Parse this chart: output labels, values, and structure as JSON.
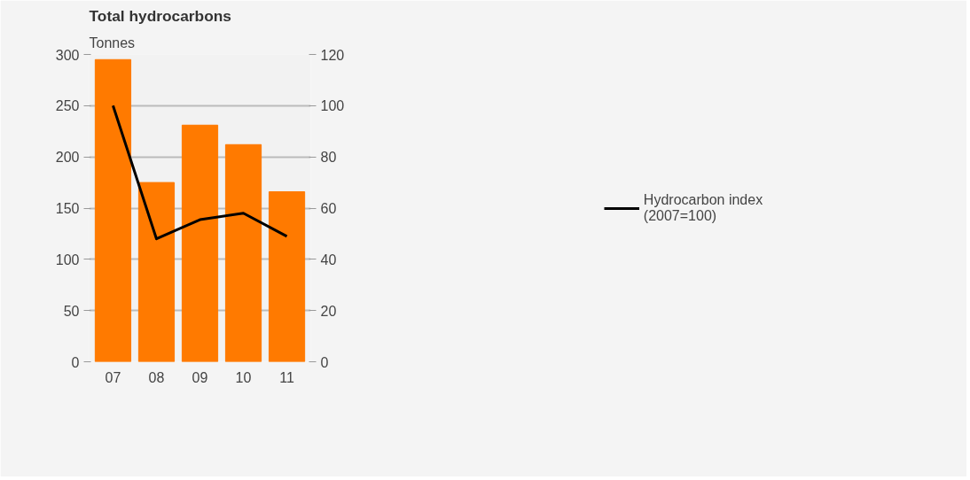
{
  "chart_data": {
    "type": "bar",
    "title": "Total hydrocarbons",
    "subtitle": "Tonnes",
    "categories": [
      "07",
      "08",
      "09",
      "10",
      "11"
    ],
    "series": [
      {
        "color": "#ff7a00",
        "values": [
          295,
          175,
          231,
          212,
          166
        ]
      },
      {
        "type": "line",
        "name": "Hydrocarbon index\n(2007=100)",
        "color": "#000000",
        "axis": "y2",
        "values": [
          100,
          48,
          55.5,
          58,
          49
        ]
      }
    ],
    "ylim": [
      0,
      300
    ],
    "yticks": [
      0,
      50,
      100,
      150,
      200,
      250,
      300
    ],
    "y2lim": [
      0,
      120
    ],
    "y2ticks": [
      0,
      20,
      40,
      60,
      80,
      100,
      120
    ],
    "grid": "y",
    "legend": "right",
    "marker": "none",
    "line_style": "solid"
  }
}
